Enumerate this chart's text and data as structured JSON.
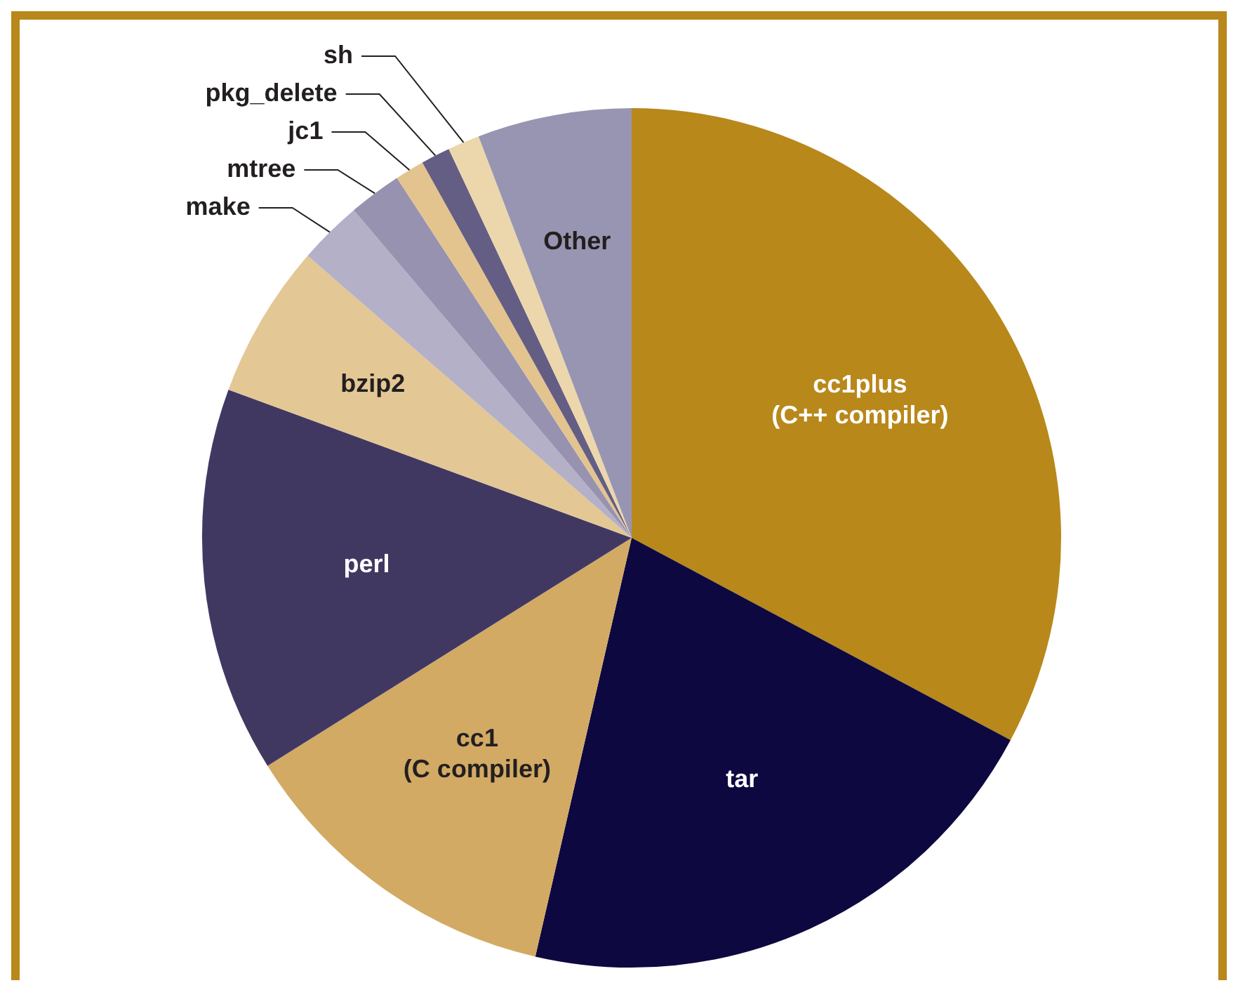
{
  "chart_data": {
    "type": "pie",
    "categories": [
      "cc1plus (C++ compiler)",
      "tar",
      "cc1 (C compiler)",
      "perl",
      "bzip2",
      "make",
      "mtree",
      "jc1",
      "pkg_delete",
      "sh",
      "Other"
    ],
    "values": [
      32.8,
      20.8,
      12.5,
      14.5,
      5.8,
      2.4,
      2.0,
      1.1,
      1.1,
      1.2,
      5.8
    ],
    "colors": [
      "#b8881b",
      "#0e0840",
      "#d2aa64",
      "#413862",
      "#e3c795",
      "#b3b0c8",
      "#9792b0",
      "#e3c48f",
      "#645e84",
      "#ecd7ac",
      "#9895b2"
    ],
    "legend": false
  }
}
